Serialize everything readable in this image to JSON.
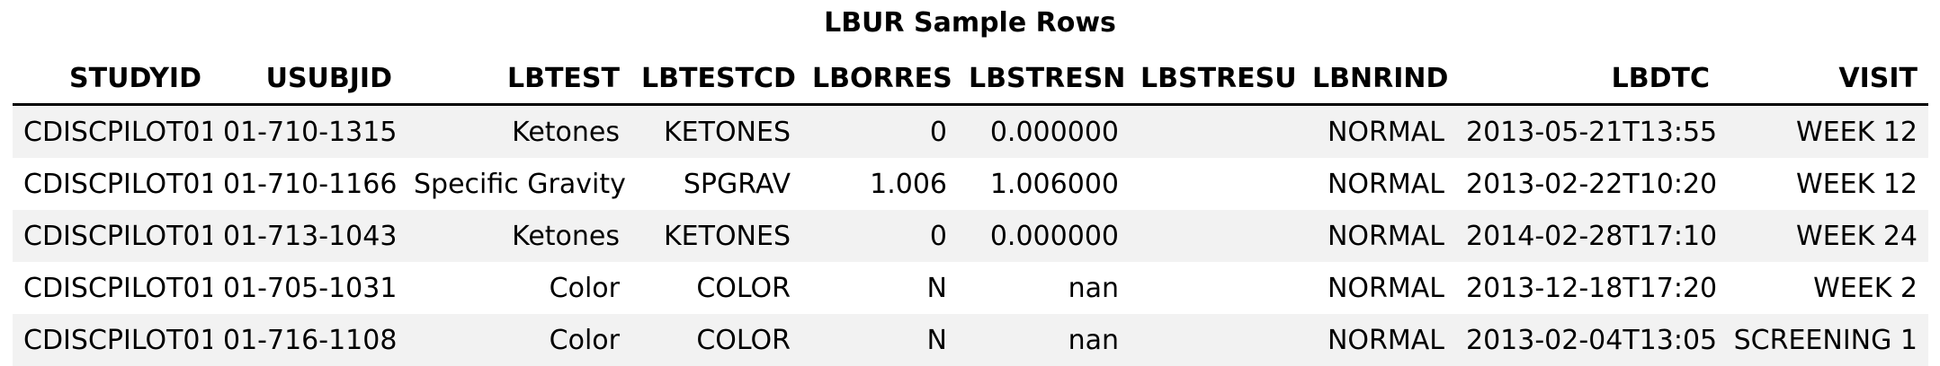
{
  "chart_data": {
    "type": "table",
    "title": "LBUR Sample Rows",
    "columns": [
      "STUDYID",
      "USUBJID",
      "LBTEST",
      "LBTESTCD",
      "LBORRES",
      "LBSTRESN",
      "LBSTRESU",
      "LBNRIND",
      "LBDTC",
      "VISIT"
    ],
    "rows": [
      [
        "CDISCPILOT01",
        "01-710-1315",
        "Ketones",
        "KETONES",
        "0",
        "0.000000",
        "",
        "NORMAL",
        "2013-05-21T13:55",
        "WEEK 12"
      ],
      [
        "CDISCPILOT01",
        "01-710-1166",
        "Specific Gravity",
        "SPGRAV",
        "1.006",
        "1.006000",
        "",
        "NORMAL",
        "2013-02-22T10:20",
        "WEEK 12"
      ],
      [
        "CDISCPILOT01",
        "01-713-1043",
        "Ketones",
        "KETONES",
        "0",
        "0.000000",
        "",
        "NORMAL",
        "2014-02-28T17:10",
        "WEEK 24"
      ],
      [
        "CDISCPILOT01",
        "01-705-1031",
        "Color",
        "COLOR",
        "N",
        "nan",
        "",
        "NORMAL",
        "2013-12-18T17:20",
        "WEEK 2"
      ],
      [
        "CDISCPILOT01",
        "01-716-1108",
        "Color",
        "COLOR",
        "N",
        "nan",
        "",
        "NORMAL",
        "2013-02-04T13:05",
        "SCREENING 1"
      ]
    ]
  },
  "colors": {
    "stripe": "#f2f2f2",
    "background": "#ffffff",
    "rule": "#000000"
  }
}
